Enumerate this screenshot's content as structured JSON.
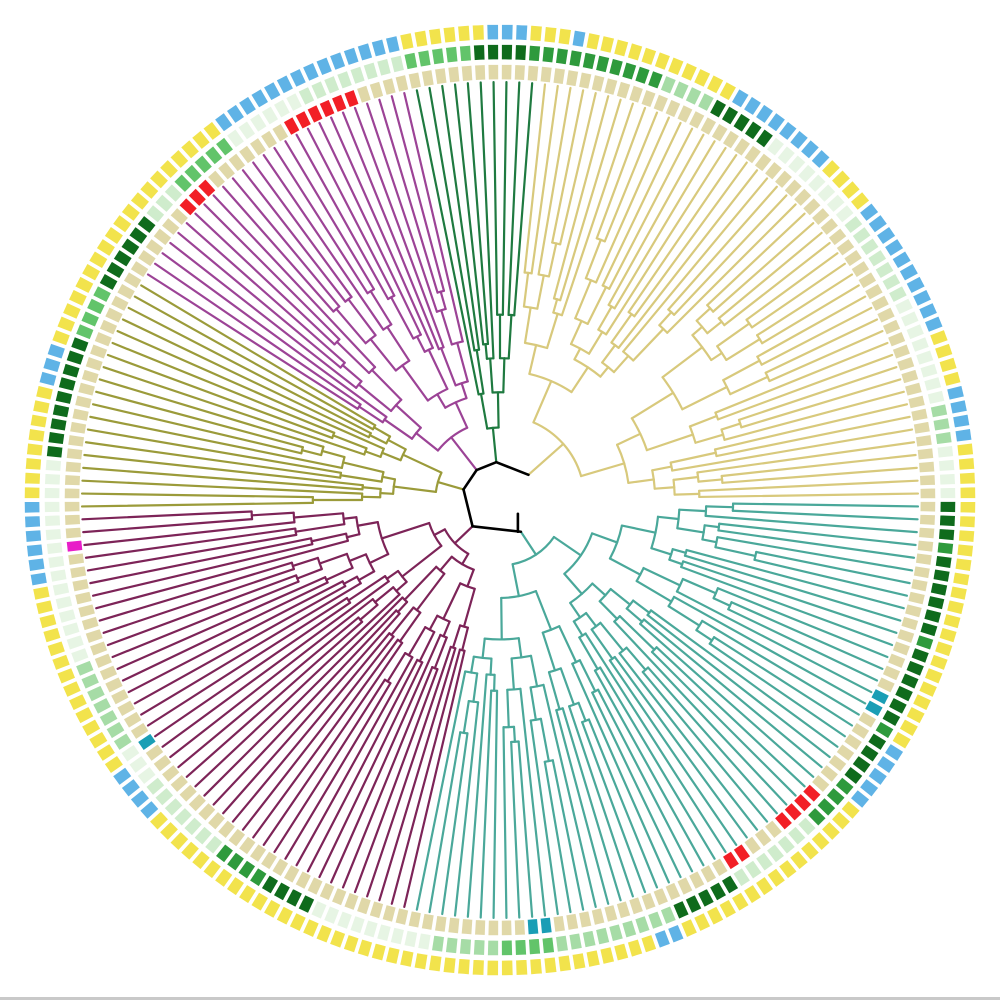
{
  "figure": {
    "type": "circular-phylogenetic-tree",
    "background": "#ffffff",
    "root_branch_color": "#000000",
    "tile_gap_color": "#ffffff"
  },
  "clades": [
    {
      "id": "clade-teal",
      "color": "#4aa89a",
      "leaf_count": 58
    },
    {
      "id": "clade-plum",
      "color": "#7d2458",
      "leaf_count": 43
    },
    {
      "id": "clade-olive",
      "color": "#9b9b3a",
      "leaf_count": 19
    },
    {
      "id": "clade-magenta",
      "color": "#9c4396",
      "leaf_count": 26
    },
    {
      "id": "clade-darkgreen",
      "color": "#1f7a40",
      "leaf_count": 10
    },
    {
      "id": "clade-sand",
      "color": "#d8c97c",
      "leaf_count": 48
    }
  ],
  "rings": [
    {
      "id": "ring-inner",
      "palette": [
        "#e0d8a8",
        "#f21f26",
        "#1a9eb5",
        "#e81ec8"
      ]
    },
    {
      "id": "ring-middle",
      "palette": [
        "#0f6b1c",
        "#2e9a3c",
        "#62c46a",
        "#a6dca6",
        "#cfeccc",
        "#e7f5e4"
      ]
    },
    {
      "id": "ring-outer",
      "palette": [
        "#f2e34c",
        "#5fb3e6"
      ]
    }
  ]
}
